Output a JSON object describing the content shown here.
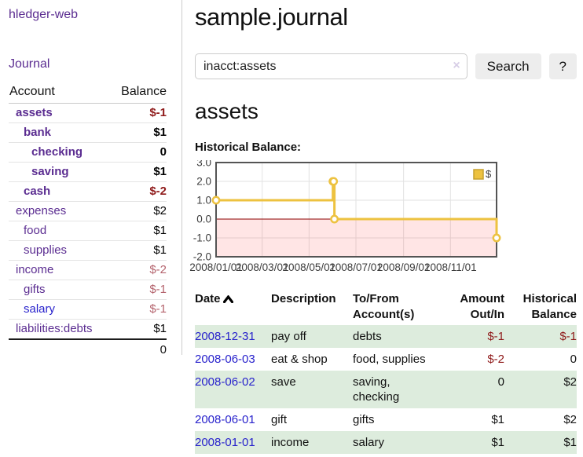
{
  "colors": {
    "accent_purple": "#5b2d91",
    "link_blue": "#2822cc",
    "negative_red": "#8f1a1a",
    "negative_rose": "#b4636d",
    "row_green": "#ddecdd",
    "chart_gold": "#EDC240",
    "zero_line_red": "#8b0000"
  },
  "sidebar": {
    "brand": "hledger-web",
    "journal_link": "Journal",
    "accounts": {
      "headers": {
        "account": "Account",
        "balance": "Balance"
      },
      "rows": [
        {
          "name": "assets",
          "balance": "$-1",
          "level": 1,
          "bold": true,
          "bal_style": "neg"
        },
        {
          "name": "bank",
          "balance": "$1",
          "level": 2,
          "bold": true,
          "bal_style": "normal"
        },
        {
          "name": "checking",
          "balance": "0",
          "level": 3,
          "bold": true,
          "bal_style": "normal"
        },
        {
          "name": "saving",
          "balance": "$1",
          "level": 3,
          "bold": true,
          "bal_style": "normal"
        },
        {
          "name": "cash",
          "balance": "$-2",
          "level": 2,
          "bold": true,
          "bal_style": "neg"
        },
        {
          "name": "expenses",
          "balance": "$2",
          "level": 1,
          "bold": false,
          "bal_style": "normal"
        },
        {
          "name": "food",
          "balance": "$1",
          "level": 2,
          "bold": false,
          "bal_style": "normal"
        },
        {
          "name": "supplies",
          "balance": "$1",
          "level": 2,
          "bold": false,
          "bal_style": "normal"
        },
        {
          "name": "income",
          "balance": "$-2",
          "level": 1,
          "bold": false,
          "bal_style": "rose"
        },
        {
          "name": "gifts",
          "balance": "$-1",
          "level": 2,
          "bold": false,
          "bal_style": "rose"
        },
        {
          "name": "salary",
          "balance": "$-1",
          "level": 2,
          "bold": false,
          "bal_style": "rose",
          "link_style": "blue"
        },
        {
          "name": "liabilities:debts",
          "balance": "$1",
          "level": 1,
          "bold": false,
          "bal_style": "normal"
        }
      ],
      "total": "0"
    }
  },
  "main": {
    "title": "sample.journal",
    "search": {
      "value": "inacct:assets",
      "clear_icon": "×",
      "search_button": "Search",
      "help_button": "?"
    },
    "account_heading": "assets",
    "chart_label": "Historical Balance:"
  },
  "chart_data": {
    "type": "line",
    "style": "steps",
    "series_label": "$",
    "series_color": "#EDC240",
    "points": [
      [
        "2008/01/01",
        1
      ],
      [
        "2008/06/01",
        2
      ],
      [
        "2008/06/02",
        2
      ],
      [
        "2008/06/03",
        0
      ],
      [
        "2008/12/31",
        -1
      ]
    ],
    "x_range": [
      "2008/01/01",
      "2008/12/31"
    ],
    "y_range": [
      -2,
      3
    ],
    "x_ticks": [
      "2008/01/01",
      "2008/03/01",
      "2008/05/01",
      "2008/07/01",
      "2008/09/01",
      "2008/11/01"
    ],
    "y_ticks": [
      "3.0",
      "2.0",
      "1.0",
      "0.0",
      "-1.0",
      "-2.0"
    ],
    "grid": true,
    "legend_position": "top-right",
    "negative_region_shaded": true
  },
  "register": {
    "headers": [
      {
        "label": "Date",
        "sort": "ascending"
      },
      {
        "label": "Description"
      },
      {
        "label": "To/From Account(s)"
      },
      {
        "label": "Amount Out/In"
      },
      {
        "label": "Historical Balance"
      }
    ],
    "rows": [
      {
        "date": "2008-12-31",
        "description": "pay off",
        "accounts": "debts",
        "amount": "$-1",
        "balance": "$-1",
        "striped": true
      },
      {
        "date": "2008-06-03",
        "description": "eat & shop",
        "accounts": "food, supplies",
        "amount": "$-2",
        "balance": "0",
        "striped": false
      },
      {
        "date": "2008-06-02",
        "description": "save",
        "accounts": "saving, checking",
        "amount": "0",
        "balance": "$2",
        "striped": true
      },
      {
        "date": "2008-06-01",
        "description": "gift",
        "accounts": "gifts",
        "amount": "$1",
        "balance": "$2",
        "striped": false
      },
      {
        "date": "2008-01-01",
        "description": "income",
        "accounts": "salary",
        "amount": "$1",
        "balance": "$1",
        "striped": true
      }
    ]
  }
}
